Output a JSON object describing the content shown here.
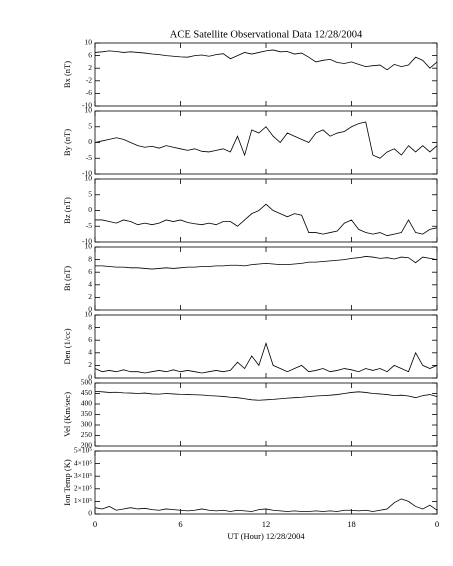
{
  "chart_data": [
    {
      "type": "line",
      "title": "ACE Satellite Observational Data   12/28/2004",
      "ylabel": "Bx (nT)",
      "color": "#000000",
      "x": [
        0,
        0.5,
        1,
        1.5,
        2,
        2.5,
        3,
        3.5,
        4,
        4.5,
        5,
        5.5,
        6,
        6.5,
        7,
        7.5,
        8,
        8.5,
        9,
        9.5,
        10,
        10.5,
        11,
        11.5,
        12,
        12.5,
        13,
        13.5,
        14,
        14.5,
        15,
        15.5,
        16,
        16.5,
        17,
        17.5,
        18,
        18.5,
        19,
        19.5,
        20,
        20.5,
        21,
        21.5,
        22,
        22.5,
        23,
        23.5,
        24
      ],
      "values": [
        7,
        7.2,
        7.5,
        7.3,
        7,
        7.2,
        7,
        6.8,
        6.5,
        6.3,
        6,
        5.8,
        5.6,
        5.5,
        6,
        6.2,
        5.8,
        6.3,
        6.6,
        5,
        6,
        7,
        6.5,
        7,
        7.5,
        7.8,
        7.2,
        7.3,
        6.5,
        6.8,
        5.5,
        4,
        4.5,
        4.8,
        3.8,
        3.5,
        4,
        3.2,
        2.5,
        2.8,
        3,
        1.5,
        3.2,
        2.5,
        3,
        5.5,
        4.5,
        2,
        4
      ],
      "ylim": [
        -10,
        10
      ],
      "yticks": [
        -10,
        -6,
        -2,
        2,
        6,
        10
      ]
    },
    {
      "type": "line",
      "ylabel": "By (nT)",
      "color": "#000000",
      "x": [
        0,
        0.5,
        1,
        1.5,
        2,
        2.5,
        3,
        3.5,
        4,
        4.5,
        5,
        5.5,
        6,
        6.5,
        7,
        7.5,
        8,
        8.5,
        9,
        9.5,
        10,
        10.5,
        11,
        11.5,
        12,
        12.5,
        13,
        13.5,
        14,
        14.5,
        15,
        15.5,
        16,
        16.5,
        17,
        17.5,
        18,
        18.5,
        19,
        19.5,
        20,
        20.5,
        21,
        21.5,
        22,
        22.5,
        23,
        23.5,
        24
      ],
      "values": [
        0,
        0.5,
        1,
        1.5,
        1,
        0,
        -1,
        -1.5,
        -1.2,
        -1.8,
        -1,
        -1.5,
        -2,
        -2.5,
        -2,
        -2.8,
        -3,
        -2.5,
        -2,
        -3,
        2,
        -4,
        4,
        3,
        5,
        2,
        0,
        3,
        2,
        1,
        0,
        3,
        4,
        2,
        3,
        3.5,
        5,
        6,
        6.5,
        -4,
        -5,
        -3,
        -2,
        -4,
        -1,
        -3,
        -1,
        -3,
        -1
      ],
      "ylim": [
        -10,
        10
      ],
      "yticks": [
        -10,
        -5,
        0,
        5,
        10
      ]
    },
    {
      "type": "line",
      "ylabel": "Bz (nT)",
      "color": "#000000",
      "x": [
        0,
        0.5,
        1,
        1.5,
        2,
        2.5,
        3,
        3.5,
        4,
        4.5,
        5,
        5.5,
        6,
        6.5,
        7,
        7.5,
        8,
        8.5,
        9,
        9.5,
        10,
        10.5,
        11,
        11.5,
        12,
        12.5,
        13,
        13.5,
        14,
        14.5,
        15,
        15.5,
        16,
        16.5,
        17,
        17.5,
        18,
        18.5,
        19,
        19.5,
        20,
        20.5,
        21,
        21.5,
        22,
        22.5,
        23,
        23.5,
        24
      ],
      "values": [
        -3,
        -3,
        -3.5,
        -4,
        -3,
        -3.5,
        -4.5,
        -4,
        -4.5,
        -4,
        -3,
        -3.5,
        -3,
        -3.8,
        -4.2,
        -4.5,
        -4,
        -4.5,
        -3.5,
        -3.5,
        -5,
        -3,
        -1,
        0,
        2,
        0,
        -1,
        -2,
        -1,
        -1.5,
        -7,
        -7,
        -7.5,
        -7,
        -6.5,
        -4,
        -3,
        -6,
        -7,
        -7.5,
        -7,
        -8,
        -7.5,
        -7,
        -3,
        -7,
        -7.5,
        -6,
        -5.5
      ],
      "ylim": [
        -10,
        10
      ],
      "yticks": [
        -10,
        -5,
        0,
        5,
        10
      ]
    },
    {
      "type": "line",
      "ylabel": "Bt (nT)",
      "color": "#000000",
      "x": [
        0,
        0.5,
        1,
        1.5,
        2,
        2.5,
        3,
        3.5,
        4,
        4.5,
        5,
        5.5,
        6,
        6.5,
        7,
        7.5,
        8,
        8.5,
        9,
        9.5,
        10,
        10.5,
        11,
        11.5,
        12,
        12.5,
        13,
        13.5,
        14,
        14.5,
        15,
        15.5,
        16,
        16.5,
        17,
        17.5,
        18,
        18.5,
        19,
        19.5,
        20,
        20.5,
        21,
        21.5,
        22,
        22.5,
        23,
        23.5,
        24
      ],
      "values": [
        7,
        7,
        6.9,
        6.8,
        6.8,
        6.7,
        6.7,
        6.6,
        6.5,
        6.6,
        6.7,
        6.6,
        6.7,
        6.8,
        6.8,
        6.9,
        6.9,
        7,
        7,
        7.1,
        7.1,
        7,
        7.2,
        7.3,
        7.4,
        7.3,
        7.2,
        7.2,
        7.3,
        7.4,
        7.6,
        7.6,
        7.7,
        7.8,
        7.9,
        8,
        8.2,
        8.3,
        8.5,
        8.4,
        8.2,
        8.3,
        8.1,
        8.4,
        8.3,
        7.5,
        8.4,
        8.2,
        8
      ],
      "ylim": [
        0,
        10
      ],
      "yticks": [
        0,
        2,
        4,
        6,
        8,
        10
      ]
    },
    {
      "type": "line",
      "ylabel": "Den (1/cc)",
      "color": "#000000",
      "x": [
        0,
        0.5,
        1,
        1.5,
        2,
        2.5,
        3,
        3.5,
        4,
        4.5,
        5,
        5.5,
        6,
        6.5,
        7,
        7.5,
        8,
        8.5,
        9,
        9.5,
        10,
        10.5,
        11,
        11.5,
        12,
        12.5,
        13,
        13.5,
        14,
        14.5,
        15,
        15.5,
        16,
        16.5,
        17,
        17.5,
        18,
        18.5,
        19,
        19.5,
        20,
        20.5,
        21,
        21.5,
        22,
        22.5,
        23,
        23.5,
        24
      ],
      "values": [
        1.5,
        1,
        1.2,
        1,
        1.3,
        1,
        1,
        0.8,
        1,
        1.2,
        1,
        1.3,
        1,
        1.2,
        1,
        0.8,
        1,
        1.2,
        1,
        1.2,
        2.5,
        1.5,
        3.5,
        2,
        5.5,
        2,
        1.5,
        1,
        1.5,
        2,
        1,
        1.2,
        1.5,
        1,
        1.2,
        1.5,
        1.3,
        1,
        1.5,
        1.2,
        1.5,
        1,
        2,
        1.5,
        1,
        4,
        2,
        1.5,
        2
      ],
      "ylim": [
        0,
        10
      ],
      "yticks": [
        0,
        2,
        4,
        6,
        8,
        10
      ]
    },
    {
      "type": "line",
      "ylabel": "Vel (Km/sec)",
      "color": "#000000",
      "x": [
        0,
        0.5,
        1,
        1.5,
        2,
        2.5,
        3,
        3.5,
        4,
        4.5,
        5,
        5.5,
        6,
        6.5,
        7,
        7.5,
        8,
        8.5,
        9,
        9.5,
        10,
        10.5,
        11,
        11.5,
        12,
        12.5,
        13,
        13.5,
        14,
        14.5,
        15,
        15.5,
        16,
        16.5,
        17,
        17.5,
        18,
        18.5,
        19,
        19.5,
        20,
        20.5,
        21,
        21.5,
        22,
        22.5,
        23,
        23.5,
        24
      ],
      "values": [
        460,
        458,
        455,
        456,
        453,
        452,
        450,
        452,
        448,
        447,
        450,
        448,
        446,
        445,
        444,
        443,
        440,
        438,
        436,
        432,
        430,
        425,
        420,
        418,
        420,
        422,
        425,
        428,
        430,
        432,
        435,
        438,
        440,
        442,
        445,
        450,
        455,
        458,
        455,
        450,
        448,
        445,
        440,
        442,
        438,
        430,
        440,
        445,
        435
      ],
      "ylim": [
        200,
        500
      ],
      "yticks": [
        200,
        250,
        300,
        350,
        400,
        450,
        500
      ]
    },
    {
      "type": "line",
      "ylabel": "Ion Temp (K)",
      "xlabel": "UT (Hour)   12/28/2004",
      "color": "#000000",
      "x": [
        0,
        0.5,
        1,
        1.5,
        2,
        2.5,
        3,
        3.5,
        4,
        4.5,
        5,
        5.5,
        6,
        6.5,
        7,
        7.5,
        8,
        8.5,
        9,
        9.5,
        10,
        10.5,
        11,
        11.5,
        12,
        12.5,
        13,
        13.5,
        14,
        14.5,
        15,
        15.5,
        16,
        16.5,
        17,
        17.5,
        18,
        18.5,
        19,
        19.5,
        20,
        20.5,
        21,
        21.5,
        22,
        22.5,
        23,
        23.5,
        24
      ],
      "values": [
        50000,
        40000,
        60000,
        30000,
        40000,
        50000,
        40000,
        45000,
        35000,
        30000,
        40000,
        35000,
        30000,
        25000,
        30000,
        40000,
        30000,
        25000,
        30000,
        20000,
        30000,
        25000,
        20000,
        35000,
        40000,
        30000,
        25000,
        20000,
        25000,
        20000,
        20000,
        25000,
        20000,
        25000,
        20000,
        30000,
        30000,
        25000,
        30000,
        20000,
        30000,
        40000,
        90000,
        120000,
        100000,
        60000,
        40000,
        70000,
        30000
      ],
      "ylim": [
        0,
        500000
      ],
      "yticks": [
        0,
        {
          "value": 100000,
          "label": "1×10⁵"
        },
        {
          "value": 200000,
          "label": "2×10⁵"
        },
        {
          "value": 300000,
          "label": "3×10⁵"
        },
        {
          "value": 400000,
          "label": "4×10⁵"
        },
        {
          "value": 500000,
          "label": "5×10⁵"
        }
      ],
      "xlim": [
        0,
        24
      ],
      "xticks": [
        0,
        6,
        12,
        18,
        {
          "value": 24,
          "label": "0"
        }
      ]
    }
  ]
}
